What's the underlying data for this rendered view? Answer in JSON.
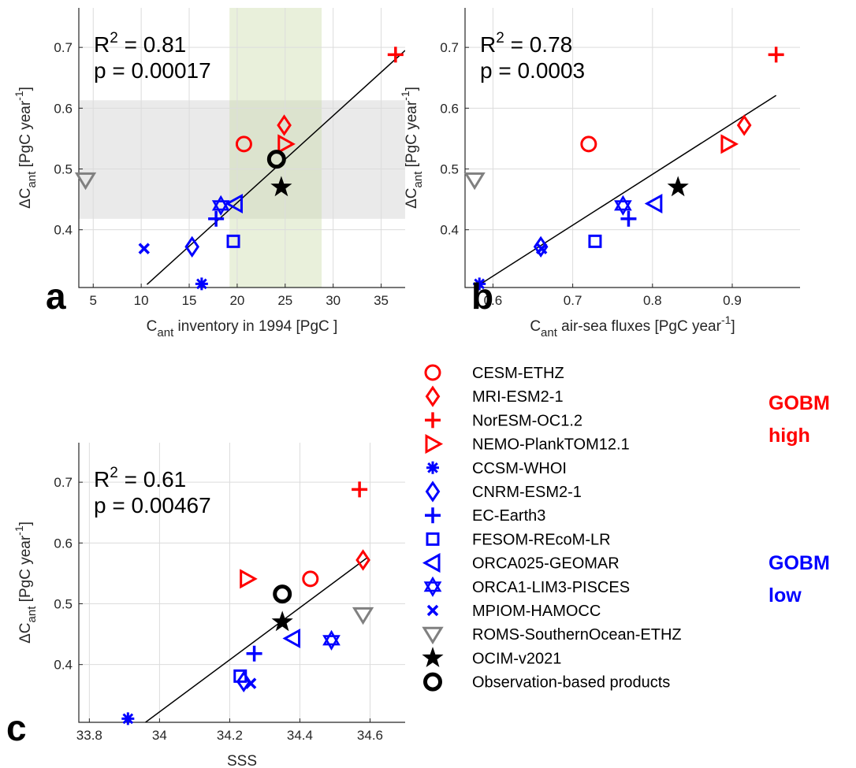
{
  "colors": {
    "gobm_high": "#ff0000",
    "gobm_low": "#0000ff",
    "other": "#808080",
    "black": "#000000",
    "shade_gray": "#e6e6e6",
    "shade_green": "#e8efd8",
    "grid": "#dcdcdc"
  },
  "chart_data": [
    {
      "panel": "a",
      "type": "scatter",
      "xlabel": "C_ant inventory in 1994 [PgC ]",
      "xlabel_main": "C",
      "xlabel_sub": "ant",
      "xlabel_rest": " inventory in 1994 [PgC ]",
      "ylabel": "ΔC_ant [PgC year^-1]",
      "xlim": [
        3.5,
        37.5
      ],
      "ylim": [
        0.305,
        0.765
      ],
      "xticks": [
        5,
        10,
        15,
        20,
        25,
        30,
        35
      ],
      "yticks": [
        0.4,
        0.5,
        0.6,
        0.7
      ],
      "xtick_labels": [
        "5",
        "10",
        "15",
        "20",
        "25",
        "30",
        "35"
      ],
      "ytick_labels": [
        "0.4",
        "0.5",
        "0.6",
        "0.7"
      ],
      "stats": {
        "r2": "R² = 0.81",
        "r2_base": "R",
        "r2_exp": "2",
        "r2_val": " = 0.81",
        "p": "p = 0.00017"
      },
      "fit": [
        [
          10.6,
          0.31
        ],
        [
          37.5,
          0.695
        ]
      ],
      "shade_y": [
        0.418,
        0.613
      ],
      "shade_x": [
        19.2,
        28.8
      ],
      "points": [
        {
          "model": "CESM-ETHZ",
          "x": 20.7,
          "y": 0.541
        },
        {
          "model": "MRI-ESM2-1",
          "x": 24.9,
          "y": 0.572
        },
        {
          "model": "NorESM-OC1.2",
          "x": 36.5,
          "y": 0.688
        },
        {
          "model": "NEMO-PlankTOM12.1",
          "x": 25.0,
          "y": 0.541
        },
        {
          "model": "CCSM-WHOI",
          "x": 16.3,
          "y": 0.311
        },
        {
          "model": "CNRM-ESM2-1",
          "x": 15.3,
          "y": 0.372
        },
        {
          "model": "EC-Earth3",
          "x": 17.8,
          "y": 0.418
        },
        {
          "model": "FESOM-REcoM-LR",
          "x": 19.6,
          "y": 0.381
        },
        {
          "model": "ORCA025-GEOMAR",
          "x": 19.8,
          "y": 0.443
        },
        {
          "model": "ORCA1-LIM3-PISCES",
          "x": 18.3,
          "y": 0.44
        },
        {
          "model": "MPIOM-HAMOCC",
          "x": 10.3,
          "y": 0.369
        },
        {
          "model": "ROMS-SouthernOcean-ETHZ",
          "x": 4.2,
          "y": 0.482
        },
        {
          "model": "OCIM-v2021",
          "x": 24.6,
          "y": 0.47
        },
        {
          "model": "Observation-based products",
          "x": 24.1,
          "y": 0.516
        }
      ]
    },
    {
      "panel": "b",
      "type": "scatter",
      "xlabel": "C_ant air-sea fluxes [PgC year^-1]",
      "xlabel_main": "C",
      "xlabel_sub": "ant",
      "xlabel_rest": " air-sea fluxes [PgC year",
      "xlabel_sup": "-1",
      "xlabel_end": "]",
      "ylabel": "ΔC_ant [PgC year^-1]",
      "xlim": [
        0.565,
        0.985
      ],
      "ylim": [
        0.305,
        0.765
      ],
      "xticks": [
        0.6,
        0.7,
        0.8,
        0.9
      ],
      "yticks": [
        0.4,
        0.5,
        0.6,
        0.7
      ],
      "xtick_labels": [
        "0.6",
        "0.7",
        "0.8",
        "0.9"
      ],
      "ytick_labels": [
        "0.4",
        "0.5",
        "0.6",
        "0.7"
      ],
      "stats": {
        "r2": "R² = 0.78",
        "r2_base": "R",
        "r2_exp": "2",
        "r2_val": " = 0.78",
        "p": "p = 0.0003"
      },
      "fit": [
        [
          0.58,
          0.307
        ],
        [
          0.955,
          0.621
        ]
      ],
      "points": [
        {
          "model": "CESM-ETHZ",
          "x": 0.72,
          "y": 0.541
        },
        {
          "model": "MRI-ESM2-1",
          "x": 0.915,
          "y": 0.572
        },
        {
          "model": "NorESM-OC1.2",
          "x": 0.955,
          "y": 0.688
        },
        {
          "model": "NEMO-PlankTOM12.1",
          "x": 0.895,
          "y": 0.541
        },
        {
          "model": "CCSM-WHOI",
          "x": 0.583,
          "y": 0.311
        },
        {
          "model": "CNRM-ESM2-1",
          "x": 0.66,
          "y": 0.372
        },
        {
          "model": "EC-Earth3",
          "x": 0.77,
          "y": 0.418
        },
        {
          "model": "FESOM-REcoM-LR",
          "x": 0.728,
          "y": 0.381
        },
        {
          "model": "ORCA025-GEOMAR",
          "x": 0.803,
          "y": 0.443
        },
        {
          "model": "ORCA1-LIM3-PISCES",
          "x": 0.763,
          "y": 0.44
        },
        {
          "model": "MPIOM-HAMOCC",
          "x": 0.661,
          "y": 0.369
        },
        {
          "model": "ROMS-SouthernOcean-ETHZ",
          "x": 0.577,
          "y": 0.482
        },
        {
          "model": "OCIM-v2021",
          "x": 0.832,
          "y": 0.47
        }
      ]
    },
    {
      "panel": "c",
      "type": "scatter",
      "xlabel": "SSS",
      "xlabel_main": "SSS",
      "xlabel_sub": "",
      "xlabel_rest": "",
      "ylabel": "ΔC_ant [PgC year^-1]",
      "xlim": [
        33.77,
        34.7
      ],
      "ylim": [
        0.305,
        0.765
      ],
      "xticks": [
        33.8,
        34.0,
        34.2,
        34.4,
        34.6
      ],
      "yticks": [
        0.4,
        0.5,
        0.6,
        0.7
      ],
      "xtick_labels": [
        "33.8",
        "34",
        "34.2",
        "34.4",
        "34.6"
      ],
      "ytick_labels": [
        "0.4",
        "0.5",
        "0.6",
        "0.7"
      ],
      "stats": {
        "r2": "R² = 0.61",
        "r2_base": "R",
        "r2_exp": "2",
        "r2_val": " = 0.61",
        "p": "p = 0.00467"
      },
      "fit": [
        [
          33.96,
          0.305
        ],
        [
          34.59,
          0.575
        ]
      ],
      "points": [
        {
          "model": "CESM-ETHZ",
          "x": 34.43,
          "y": 0.541
        },
        {
          "model": "MRI-ESM2-1",
          "x": 34.58,
          "y": 0.572
        },
        {
          "model": "NorESM-OC1.2",
          "x": 34.57,
          "y": 0.688
        },
        {
          "model": "NEMO-PlankTOM12.1",
          "x": 34.25,
          "y": 0.541
        },
        {
          "model": "CCSM-WHOI",
          "x": 33.91,
          "y": 0.311
        },
        {
          "model": "CNRM-ESM2-1",
          "x": 34.24,
          "y": 0.372
        },
        {
          "model": "EC-Earth3",
          "x": 34.27,
          "y": 0.418
        },
        {
          "model": "FESOM-REcoM-LR",
          "x": 34.23,
          "y": 0.381
        },
        {
          "model": "ORCA025-GEOMAR",
          "x": 34.38,
          "y": 0.443
        },
        {
          "model": "ORCA1-LIM3-PISCES",
          "x": 34.49,
          "y": 0.44
        },
        {
          "model": "MPIOM-HAMOCC",
          "x": 34.26,
          "y": 0.369
        },
        {
          "model": "ROMS-SouthernOcean-ETHZ",
          "x": 34.58,
          "y": 0.482
        },
        {
          "model": "OCIM-v2021",
          "x": 34.35,
          "y": 0.47
        },
        {
          "model": "Observation-based products",
          "x": 34.35,
          "y": 0.516
        }
      ]
    }
  ],
  "ylabel_parts": {
    "delta": "ΔC",
    "sub": "ant",
    "rest": " [PgC year",
    "sup": "-1",
    "end": "]"
  },
  "legend": {
    "items": [
      {
        "name": "CESM-ETHZ",
        "marker": "circle",
        "group": "high"
      },
      {
        "name": "MRI-ESM2-1",
        "marker": "diamond",
        "group": "high"
      },
      {
        "name": "NorESM-OC1.2",
        "marker": "plus",
        "group": "high"
      },
      {
        "name": "NEMO-PlankTOM12.1",
        "marker": "triangle-right",
        "group": "high"
      },
      {
        "name": "CCSM-WHOI",
        "marker": "asterisk",
        "group": "low"
      },
      {
        "name": "CNRM-ESM2-1",
        "marker": "diamond",
        "group": "low"
      },
      {
        "name": "EC-Earth3",
        "marker": "plus",
        "group": "low"
      },
      {
        "name": "FESOM-REcoM-LR",
        "marker": "square",
        "group": "low"
      },
      {
        "name": "ORCA025-GEOMAR",
        "marker": "triangle-left",
        "group": "low"
      },
      {
        "name": "ORCA1-LIM3-PISCES",
        "marker": "hexagram",
        "group": "low"
      },
      {
        "name": "MPIOM-HAMOCC",
        "marker": "x",
        "group": "low"
      },
      {
        "name": "ROMS-SouthernOcean-ETHZ",
        "marker": "triangle-down",
        "group": "other"
      },
      {
        "name": "OCIM-v2021",
        "marker": "pentagram",
        "group": "black"
      },
      {
        "name": "Observation-based products",
        "marker": "circle-bold",
        "group": "black"
      }
    ],
    "groups": {
      "high": {
        "line1": "GOBM",
        "line2": "high"
      },
      "low": {
        "line1": "GOBM",
        "line2": "low"
      }
    }
  }
}
